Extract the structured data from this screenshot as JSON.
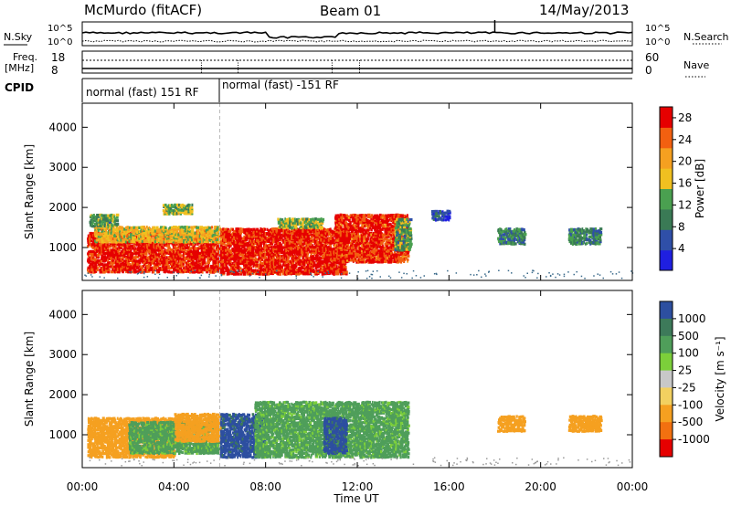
{
  "header": {
    "site": "McMurdo (fitACF)",
    "beam": "Beam 01",
    "date": "14/May/2013"
  },
  "strip_labels": {
    "nsky": "N.Sky",
    "nsearch": "N.Search",
    "freq_top": "Freq.",
    "freq_unit": "[MHz]",
    "nave": "Nave",
    "cpid": "CPID",
    "nsky_ticks": [
      "10^5",
      "10^0"
    ],
    "nsearch_ticks": [
      "10^5",
      "10^0"
    ],
    "freq_ticks": [
      "18",
      "8"
    ],
    "nave_ticks": [
      "60",
      "0"
    ]
  },
  "cpid_segments": [
    {
      "label": "normal (fast) 151 RF",
      "start_hour": 0
    },
    {
      "label": "normal (fast) -151 RF",
      "start_hour": 6
    }
  ],
  "colors": {
    "power": [
      "#1f1fe0",
      "#2f4fa8",
      "#3a7a55",
      "#4aa050",
      "#f0c020",
      "#f5a020",
      "#f26010",
      "#e60000"
    ],
    "velocity": [
      "#2d4fa0",
      "#3d7a5a",
      "#4f9e5a",
      "#7ccf3a",
      "#c8c8c8",
      "#f2d060",
      "#f5a020",
      "#f27010",
      "#e60000"
    ]
  },
  "chart_data": [
    {
      "type": "heatmap",
      "name": "power",
      "xlabel": "",
      "ylabel": "Slant Range [km]",
      "xlim": [
        "00:00",
        "24:00"
      ],
      "ylim": [
        180,
        4600
      ],
      "yticks": [
        "1000",
        "2000",
        "3000",
        "4000"
      ],
      "xticks": [
        "00:00",
        "04:00",
        "08:00",
        "12:00",
        "16:00",
        "20:00",
        "00:00"
      ],
      "colorbar": {
        "label": "Power [dB]",
        "ticks": [
          "4",
          "8",
          "12",
          "16",
          "20",
          "24",
          "28"
        ],
        "range": [
          0,
          30
        ]
      },
      "regions": [
        {
          "t0": 0.2,
          "t1": 6.0,
          "r0": 350,
          "r1": 1350,
          "level": 28
        },
        {
          "t0": 0.5,
          "t1": 6.0,
          "r0": 1100,
          "r1": 1500,
          "level": 18
        },
        {
          "t0": 0.3,
          "t1": 1.5,
          "r0": 1500,
          "r1": 1800,
          "level": 12
        },
        {
          "t0": 3.5,
          "t1": 4.8,
          "r0": 1800,
          "r1": 2050,
          "level": 14
        },
        {
          "t0": 6.0,
          "t1": 11.5,
          "r0": 300,
          "r1": 1450,
          "level": 28
        },
        {
          "t0": 8.5,
          "t1": 10.5,
          "r0": 1450,
          "r1": 1700,
          "level": 14
        },
        {
          "t0": 11.0,
          "t1": 14.2,
          "r0": 600,
          "r1": 1800,
          "level": 27
        },
        {
          "t0": 13.6,
          "t1": 14.3,
          "r0": 900,
          "r1": 1700,
          "level": 12
        },
        {
          "t0": 15.2,
          "t1": 16.0,
          "r0": 1650,
          "r1": 1900,
          "level": 6
        },
        {
          "t0": 18.1,
          "t1": 19.3,
          "r0": 1050,
          "r1": 1450,
          "level": 10
        },
        {
          "t0": 21.2,
          "t1": 22.6,
          "r0": 1050,
          "r1": 1450,
          "level": 10
        }
      ]
    },
    {
      "type": "heatmap",
      "name": "velocity",
      "xlabel": "Time UT",
      "ylabel": "Slant Range [km]",
      "xlim": [
        "00:00",
        "24:00"
      ],
      "ylim": [
        180,
        4600
      ],
      "yticks": [
        "1000",
        "2000",
        "3000",
        "4000"
      ],
      "xticks": [
        "00:00",
        "04:00",
        "08:00",
        "12:00",
        "16:00",
        "20:00",
        "00:00"
      ],
      "colorbar": {
        "label": "Velocity [m s⁻¹]",
        "ticks": [
          "1000",
          "500",
          "100",
          "25",
          "-25",
          "-100",
          "-500",
          "-1000"
        ]
      },
      "regions": [
        {
          "t0": 0.2,
          "t1": 4.0,
          "r0": 400,
          "r1": 1400,
          "level": -100
        },
        {
          "t0": 2.0,
          "t1": 6.0,
          "r0": 500,
          "r1": 1300,
          "level": 100
        },
        {
          "t0": 4.0,
          "t1": 6.0,
          "r0": 800,
          "r1": 1500,
          "level": -100
        },
        {
          "t0": 6.0,
          "t1": 8.0,
          "r0": 400,
          "r1": 1500,
          "level": 1000
        },
        {
          "t0": 7.5,
          "t1": 14.2,
          "r0": 400,
          "r1": 1800,
          "level": 100
        },
        {
          "t0": 10.5,
          "t1": 11.5,
          "r0": 500,
          "r1": 1400,
          "level": 1000
        },
        {
          "t0": 18.1,
          "t1": 19.3,
          "r0": 1050,
          "r1": 1450,
          "level": -100
        },
        {
          "t0": 21.2,
          "t1": 22.6,
          "r0": 1050,
          "r1": 1450,
          "level": -100
        }
      ]
    }
  ]
}
